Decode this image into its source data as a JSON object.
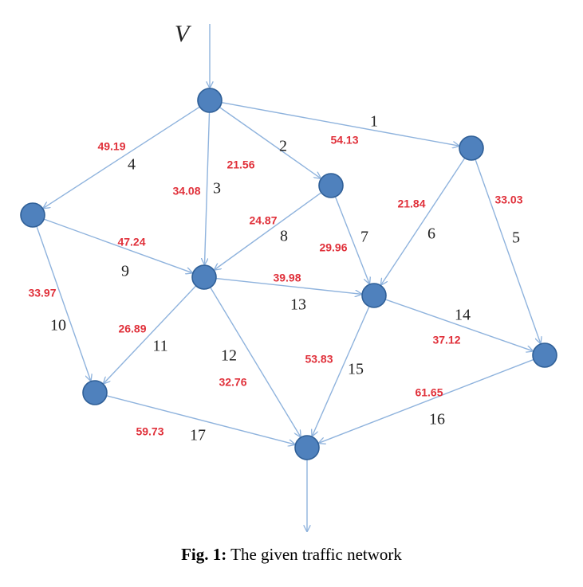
{
  "network": {
    "input_label": "V",
    "value_color": "#e0303a",
    "nodes": [
      "A",
      "B",
      "C",
      "D",
      "E",
      "F",
      "G",
      "H",
      "I",
      "J"
    ],
    "edges": [
      {
        "id": "1",
        "from": "A",
        "to": "C",
        "value": "54.13"
      },
      {
        "id": "2",
        "from": "A",
        "to": "D",
        "value": "21.56"
      },
      {
        "id": "3",
        "from": "A",
        "to": "E",
        "value": "34.08"
      },
      {
        "id": "4",
        "from": "A",
        "to": "B",
        "value": "49.19"
      },
      {
        "id": "5",
        "from": "C",
        "to": "G",
        "value": "33.03"
      },
      {
        "id": "6",
        "from": "C",
        "to": "F",
        "value": "21.84"
      },
      {
        "id": "7",
        "from": "D",
        "to": "F",
        "value": "29.96"
      },
      {
        "id": "8",
        "from": "D",
        "to": "E",
        "value": "24.87"
      },
      {
        "id": "9",
        "from": "B",
        "to": "E",
        "value": "47.24"
      },
      {
        "id": "10",
        "from": "B",
        "to": "H",
        "value": "33.97"
      },
      {
        "id": "11",
        "from": "E",
        "to": "H",
        "value": "26.89"
      },
      {
        "id": "12",
        "from": "E",
        "to": "I",
        "value": "32.76"
      },
      {
        "id": "13",
        "from": "E",
        "to": "F",
        "value": "39.98"
      },
      {
        "id": "14",
        "from": "F",
        "to": "G",
        "value": "37.12"
      },
      {
        "id": "15",
        "from": "F",
        "to": "I",
        "value": "53.83"
      },
      {
        "id": "16",
        "from": "G",
        "to": "I",
        "value": "61.65"
      },
      {
        "id": "17",
        "from": "H",
        "to": "I",
        "value": "59.73"
      }
    ]
  },
  "caption": {
    "label": "Fig. 1:",
    "text": "The given traffic network"
  }
}
